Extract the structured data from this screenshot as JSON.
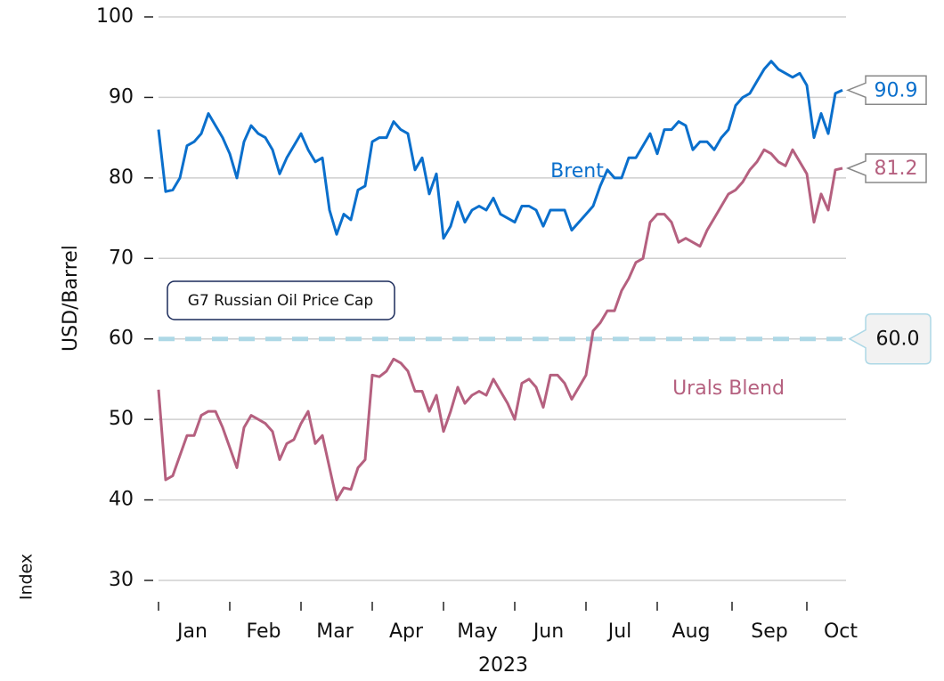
{
  "chart_data": {
    "type": "line",
    "x_label": "2023",
    "y_label": "USD/Barrel",
    "note": "Index",
    "categories": [
      null,
      null,
      null,
      null,
      null,
      "Jan",
      null,
      null,
      null,
      null,
      null,
      null,
      null,
      null,
      null,
      "Feb",
      null,
      null,
      null,
      null,
      null,
      null,
      null,
      null,
      null,
      "Mar",
      null,
      null,
      null,
      null,
      null,
      null,
      null,
      null,
      null,
      "Apr",
      null,
      null,
      null,
      null,
      null,
      null,
      null,
      null,
      null,
      "May",
      null,
      null,
      null,
      null,
      null,
      null,
      null,
      null,
      null,
      "Jun",
      null,
      null,
      null,
      null,
      null,
      null,
      null,
      null,
      null,
      "Jul",
      null,
      null,
      null,
      null,
      null,
      null,
      null,
      null,
      null,
      "Aug",
      null,
      null,
      null,
      null,
      null,
      null,
      null,
      null,
      null,
      null,
      "Sep",
      null,
      null,
      null,
      null,
      null,
      null,
      null,
      null,
      null,
      "Oct"
    ],
    "series": [
      {
        "name": "Brent",
        "color": "#0a6fcc",
        "values": [
          86,
          78.3,
          78.5,
          80,
          84,
          84.5,
          85.5,
          88,
          86.5,
          85,
          83,
          80,
          84.5,
          86.5,
          85.5,
          85,
          83.5,
          80.5,
          82.5,
          84,
          85.5,
          83.5,
          82,
          82.5,
          76,
          73,
          75.5,
          74.8,
          78.5,
          79,
          84.5,
          85,
          85,
          87,
          86,
          85.5,
          81,
          82.5,
          78,
          80.5,
          72.5,
          74,
          77,
          74.5,
          76,
          76.5,
          76,
          77.5,
          75.5,
          75,
          74.5,
          76.5,
          76.5,
          76,
          74,
          76,
          76,
          76,
          73.5,
          74.5,
          75.5,
          76.5,
          79,
          81,
          80,
          80,
          82.5,
          82.5,
          84,
          85.5,
          83,
          86,
          86,
          87,
          86.5,
          83.5,
          84.5,
          84.5,
          83.5,
          85,
          86,
          89,
          90,
          90.5,
          92,
          93.5,
          94.5,
          93.5,
          93,
          92.5,
          93,
          91.5,
          85,
          88,
          85.5,
          90.5,
          90.9
        ]
      },
      {
        "name": "Urals Blend",
        "color": "#b5607f",
        "values": [
          53.7,
          42.5,
          43,
          45.5,
          48,
          48,
          50.5,
          51,
          51,
          49,
          46.5,
          44,
          49,
          50.5,
          50,
          49.5,
          48.5,
          45,
          47,
          47.5,
          49.5,
          51,
          47,
          48,
          44,
          40,
          41.5,
          41.3,
          44,
          45,
          55.5,
          55.3,
          56,
          57.5,
          57,
          56,
          53.5,
          53.5,
          51,
          53,
          48.5,
          51,
          54,
          52,
          53,
          53.5,
          53,
          55,
          53.5,
          52,
          50,
          54.5,
          55,
          54,
          51.5,
          55.5,
          55.5,
          54.5,
          52.5,
          54,
          55.5,
          61,
          62,
          63.5,
          63.5,
          66,
          67.5,
          69.5,
          70,
          74.5,
          75.5,
          75.5,
          74.5,
          72,
          72.5,
          72,
          71.5,
          73.5,
          75,
          76.5,
          78,
          78.5,
          79.5,
          81,
          82,
          83.5,
          83,
          82,
          81.5,
          83.5,
          82,
          80.5,
          74.5,
          78,
          76,
          81,
          81.2
        ]
      }
    ],
    "reference_line": {
      "name": "G7 Russian Oil Price Cap",
      "value": 60,
      "label": "60.0",
      "color": "#add8e6"
    },
    "ylim": [
      30,
      100
    ],
    "yticks": [
      30,
      40,
      50,
      60,
      70,
      80,
      90,
      100
    ],
    "grid": true
  }
}
